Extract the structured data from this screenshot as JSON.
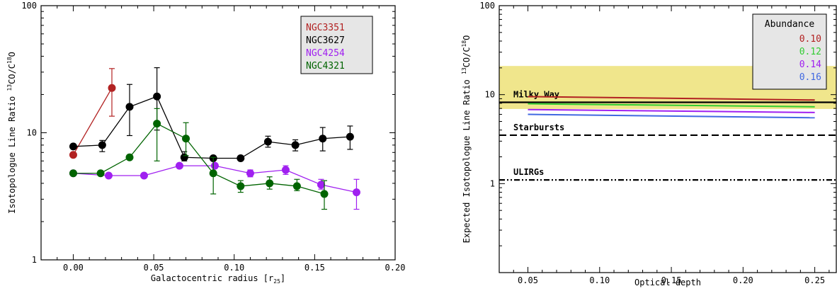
{
  "chart_data": [
    {
      "type": "line",
      "xlabel": "Galactocentric radius [r25]",
      "ylabel": "Isotopologue Line Ratio 13CO/C18O",
      "xlabel_parts": {
        "main": "Galactocentric radius [r",
        "sub": "25",
        "end": "]"
      },
      "ylabel_parts": {
        "main": "Isotopologue Line Ratio ",
        "sup1": "13",
        "mid": "CO/C",
        "sup2": "18",
        "end": "O"
      },
      "xlim": [
        -0.02,
        0.2
      ],
      "ylim": [
        1,
        100
      ],
      "yscale": "log",
      "xticks": [
        "0.00",
        "0.05",
        "0.10",
        "0.15",
        "0.20"
      ],
      "xtick_values": [
        0,
        0.05,
        0.1,
        0.15,
        0.2
      ],
      "yticks": [
        "1",
        "10",
        "100"
      ],
      "ytick_values": [
        1,
        10,
        100
      ],
      "legend_position": "top-right",
      "series": [
        {
          "name": "NGC3351",
          "color": "#b22222",
          "x": [
            0.0,
            0.024
          ],
          "y": [
            6.7,
            22.5
          ],
          "yerr_low": [
            6.7,
            13.5
          ],
          "yerr_high": [
            6.7,
            32.0
          ]
        },
        {
          "name": "NGC3627",
          "color": "#000000",
          "x": [
            0.0,
            0.018,
            0.035,
            0.052,
            0.069,
            0.087,
            0.104,
            0.121,
            0.138,
            0.155,
            0.172
          ],
          "y": [
            7.8,
            8.0,
            16.0,
            19.3,
            6.4,
            6.3,
            6.3,
            8.5,
            8.0,
            9.0,
            9.3
          ],
          "yerr_low": [
            7.8,
            7.1,
            9.5,
            10.5,
            6.0,
            6.3,
            6.3,
            7.7,
            7.2,
            7.2,
            7.4
          ],
          "yerr_high": [
            7.8,
            8.7,
            24.0,
            32.5,
            7.1,
            6.3,
            6.3,
            9.4,
            8.8,
            11.0,
            11.3
          ]
        },
        {
          "name": "NGC4254",
          "color": "#a020f0",
          "x": [
            0.0,
            0.022,
            0.044,
            0.066,
            0.088,
            0.11,
            0.132,
            0.154,
            0.176
          ],
          "y": [
            4.8,
            4.6,
            4.6,
            5.5,
            5.5,
            4.8,
            5.1,
            3.9,
            3.4
          ],
          "yerr_low": [
            4.8,
            4.6,
            4.6,
            5.5,
            5.5,
            4.5,
            4.7,
            3.6,
            2.5
          ],
          "yerr_high": [
            4.8,
            4.6,
            4.6,
            5.5,
            5.5,
            5.1,
            5.5,
            4.3,
            4.3
          ]
        },
        {
          "name": "NGC4321",
          "color": "#006400",
          "x": [
            0.0,
            0.017,
            0.035,
            0.052,
            0.07,
            0.087,
            0.104,
            0.122,
            0.139,
            0.156
          ],
          "y": [
            4.8,
            4.8,
            6.4,
            11.8,
            9.0,
            4.8,
            3.8,
            4.0,
            3.8,
            3.3
          ],
          "yerr_low": [
            4.8,
            4.8,
            6.4,
            6.0,
            6.6,
            3.3,
            3.4,
            3.6,
            3.5,
            2.5
          ],
          "yerr_high": [
            4.8,
            4.8,
            6.4,
            15.5,
            12.0,
            6.4,
            4.2,
            4.5,
            4.3,
            4.2
          ]
        }
      ]
    },
    {
      "type": "line",
      "xlabel": "Optical depth",
      "ylabel": "Expected Isotopologue Line Ratio 13CO/C18O",
      "ylabel_parts": {
        "main": "Expected Isotopologue Line Ratio ",
        "sup1": "13",
        "mid": "CO/C",
        "sup2": "18",
        "end": "O"
      },
      "xlim": [
        0.03,
        0.265
      ],
      "ylim": [
        0.1,
        100
      ],
      "yscale": "log",
      "xticks": [
        "0.05",
        "0.10",
        "0.15",
        "0.20",
        "0.25"
      ],
      "xtick_values": [
        0.05,
        0.1,
        0.15,
        0.2,
        0.25
      ],
      "yticks": [
        "1",
        "10",
        "100"
      ],
      "ytick_values": [
        1,
        10,
        100
      ],
      "legend_title": "Abundance",
      "legend_position": "top-right",
      "band": {
        "y_low": 6.9,
        "y_high": 21.0,
        "color": "#f0e68c"
      },
      "series": [
        {
          "name": "0.10",
          "color": "#b22222",
          "x": [
            0.05,
            0.25
          ],
          "y": [
            9.5,
            8.7
          ]
        },
        {
          "name": "0.12",
          "color": "#32cd32",
          "x": [
            0.05,
            0.25
          ],
          "y": [
            7.9,
            7.3
          ]
        },
        {
          "name": "0.14",
          "color": "#a020f0",
          "x": [
            0.05,
            0.25
          ],
          "y": [
            6.8,
            6.3
          ]
        },
        {
          "name": "0.16",
          "color": "#4169e1",
          "x": [
            0.05,
            0.25
          ],
          "y": [
            6.0,
            5.5
          ]
        }
      ],
      "reference_lines": [
        {
          "label": "Milky Way",
          "y": 8.2,
          "style": "solid"
        },
        {
          "label": "Starbursts",
          "y": 3.5,
          "style": "dashed"
        },
        {
          "label": "ULIRGs",
          "y": 1.1,
          "style": "dashdotdot"
        }
      ]
    }
  ]
}
